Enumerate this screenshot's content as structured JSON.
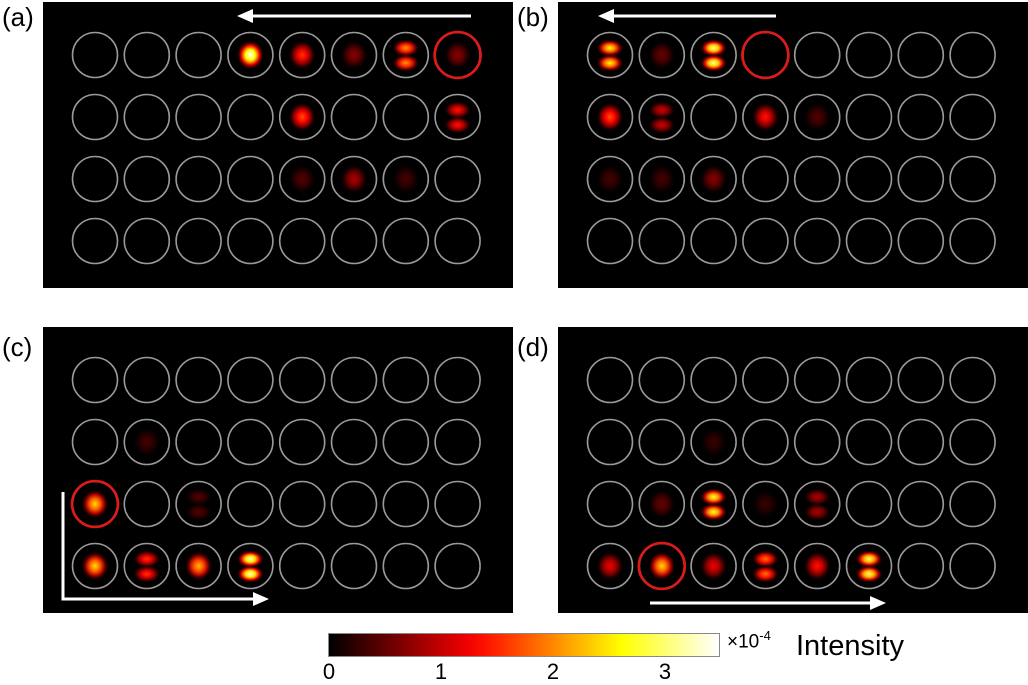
{
  "panels": [
    {
      "label": "(a)",
      "highlight": {
        "row": 0,
        "col": 7
      },
      "arrow": {
        "direction": "left",
        "row_anchor": "top"
      },
      "spots": [
        {
          "row": 0,
          "col": 3,
          "intensity": 1.0,
          "pattern": "single"
        },
        {
          "row": 0,
          "col": 4,
          "intensity": 0.45,
          "pattern": "single"
        },
        {
          "row": 0,
          "col": 5,
          "intensity": 0.2,
          "pattern": "single"
        },
        {
          "row": 0,
          "col": 6,
          "intensity": 0.6,
          "pattern": "double"
        },
        {
          "row": 0,
          "col": 7,
          "intensity": 0.2,
          "pattern": "single"
        },
        {
          "row": 1,
          "col": 4,
          "intensity": 0.5,
          "pattern": "single"
        },
        {
          "row": 1,
          "col": 7,
          "intensity": 0.4,
          "pattern": "double"
        },
        {
          "row": 2,
          "col": 4,
          "intensity": 0.12,
          "pattern": "single"
        },
        {
          "row": 2,
          "col": 5,
          "intensity": 0.25,
          "pattern": "single"
        },
        {
          "row": 2,
          "col": 6,
          "intensity": 0.1,
          "pattern": "single"
        }
      ]
    },
    {
      "label": "(b)",
      "highlight": {
        "row": 0,
        "col": 3
      },
      "arrow": {
        "direction": "left",
        "row_anchor": "top"
      },
      "spots": [
        {
          "row": 0,
          "col": 0,
          "intensity": 0.75,
          "pattern": "double"
        },
        {
          "row": 0,
          "col": 1,
          "intensity": 0.15,
          "pattern": "single"
        },
        {
          "row": 0,
          "col": 2,
          "intensity": 0.9,
          "pattern": "double"
        },
        {
          "row": 1,
          "col": 0,
          "intensity": 0.5,
          "pattern": "single"
        },
        {
          "row": 1,
          "col": 1,
          "intensity": 0.3,
          "pattern": "double"
        },
        {
          "row": 1,
          "col": 3,
          "intensity": 0.4,
          "pattern": "single"
        },
        {
          "row": 1,
          "col": 4,
          "intensity": 0.12,
          "pattern": "single"
        },
        {
          "row": 2,
          "col": 0,
          "intensity": 0.1,
          "pattern": "single"
        },
        {
          "row": 2,
          "col": 1,
          "intensity": 0.1,
          "pattern": "single"
        },
        {
          "row": 2,
          "col": 2,
          "intensity": 0.2,
          "pattern": "single"
        }
      ]
    },
    {
      "label": "(c)",
      "highlight": {
        "row": 2,
        "col": 0
      },
      "arrow": {
        "direction": "corner-right",
        "row_anchor": "bottom"
      },
      "spots": [
        {
          "row": 1,
          "col": 1,
          "intensity": 0.1,
          "pattern": "single"
        },
        {
          "row": 2,
          "col": 0,
          "intensity": 0.7,
          "pattern": "single"
        },
        {
          "row": 2,
          "col": 2,
          "intensity": 0.12,
          "pattern": "double"
        },
        {
          "row": 3,
          "col": 0,
          "intensity": 0.7,
          "pattern": "single"
        },
        {
          "row": 3,
          "col": 1,
          "intensity": 0.45,
          "pattern": "double"
        },
        {
          "row": 3,
          "col": 2,
          "intensity": 0.65,
          "pattern": "single"
        },
        {
          "row": 3,
          "col": 3,
          "intensity": 0.95,
          "pattern": "double"
        }
      ]
    },
    {
      "label": "(d)",
      "highlight": {
        "row": 3,
        "col": 1
      },
      "arrow": {
        "direction": "right",
        "row_anchor": "bottom"
      },
      "spots": [
        {
          "row": 1,
          "col": 2,
          "intensity": 0.08,
          "pattern": "single"
        },
        {
          "row": 2,
          "col": 1,
          "intensity": 0.15,
          "pattern": "single"
        },
        {
          "row": 2,
          "col": 2,
          "intensity": 0.8,
          "pattern": "double"
        },
        {
          "row": 2,
          "col": 3,
          "intensity": 0.08,
          "pattern": "single"
        },
        {
          "row": 2,
          "col": 4,
          "intensity": 0.25,
          "pattern": "double"
        },
        {
          "row": 3,
          "col": 0,
          "intensity": 0.35,
          "pattern": "single"
        },
        {
          "row": 3,
          "col": 1,
          "intensity": 0.7,
          "pattern": "single"
        },
        {
          "row": 3,
          "col": 2,
          "intensity": 0.35,
          "pattern": "single"
        },
        {
          "row": 3,
          "col": 3,
          "intensity": 0.55,
          "pattern": "double"
        },
        {
          "row": 3,
          "col": 4,
          "intensity": 0.4,
          "pattern": "single"
        },
        {
          "row": 3,
          "col": 5,
          "intensity": 0.85,
          "pattern": "double"
        }
      ]
    }
  ],
  "grid": {
    "rows": 4,
    "cols": 8
  },
  "colors": {
    "ring": "#9a9a9a",
    "highlight_ring": "#e01818",
    "arrow": "#ffffff",
    "panel_background": "#000000"
  },
  "colorbar": {
    "ticks": [
      "0",
      "1",
      "2",
      "3"
    ],
    "tick_values": [
      0,
      1,
      2,
      3
    ],
    "max": 3.5,
    "scale_prefix": "×10",
    "scale_exponent": "-4",
    "title": "Intensity",
    "colormap": "hot"
  }
}
